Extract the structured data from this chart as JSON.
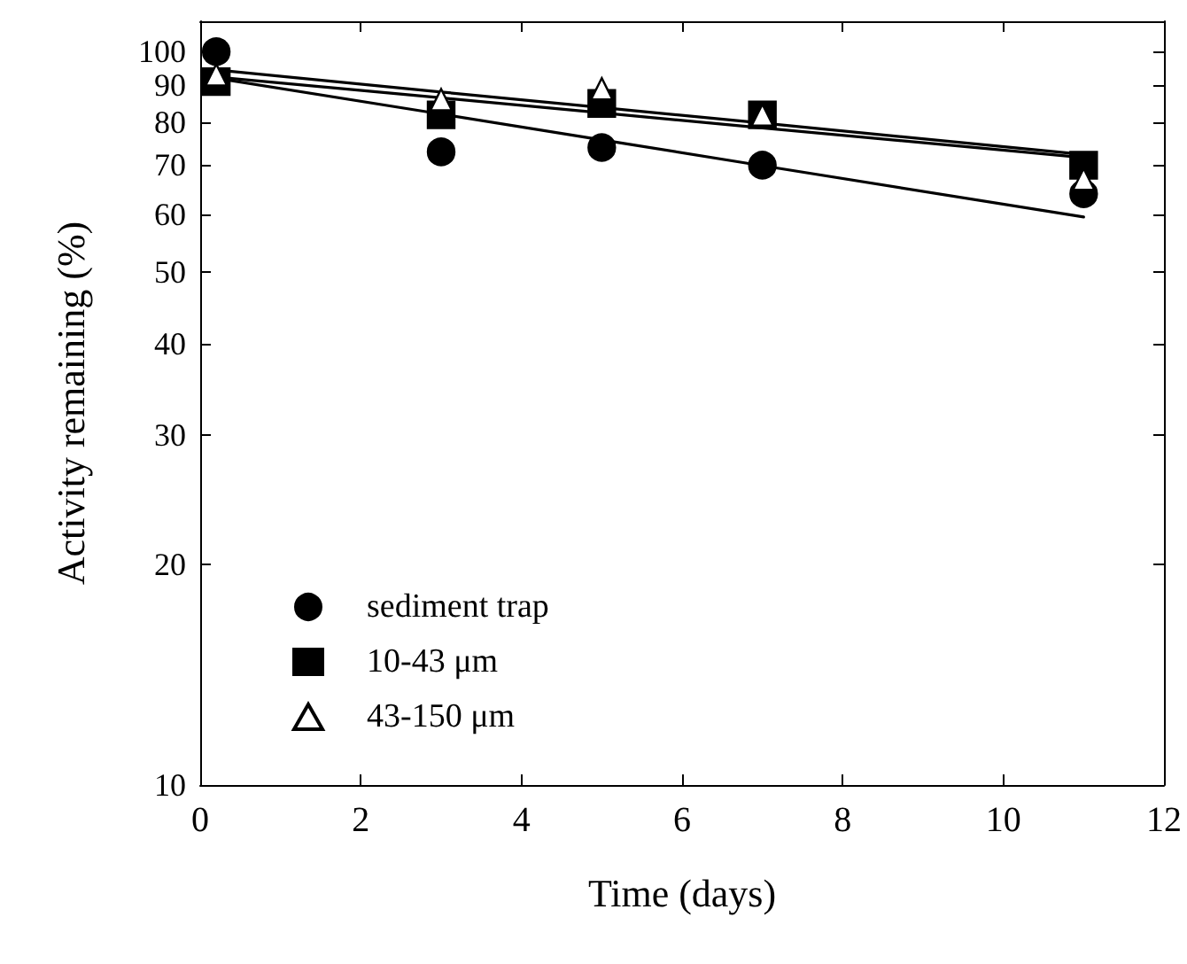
{
  "chart_data": {
    "type": "scatter",
    "xlabel": "Time (days)",
    "ylabel": "Activity remaining (%)",
    "xlim": [
      0,
      12
    ],
    "xticks": [
      0,
      2,
      4,
      6,
      8,
      10,
      12
    ],
    "ylim": [
      10,
      110
    ],
    "yticks": [
      10,
      20,
      30,
      40,
      50,
      60,
      70,
      80,
      90,
      100
    ],
    "log": "y",
    "grid": false,
    "legend": "bottom left",
    "x": [
      0.2,
      3,
      5,
      7,
      11
    ],
    "series": [
      {
        "name": "sediment trap",
        "color": "#000000",
        "marker": "circle",
        "values": [
          100,
          73,
          74,
          70,
          64
        ]
      },
      {
        "name": "10-43 μm",
        "color": "#000000",
        "marker": "square",
        "values": [
          91,
          82,
          85,
          82,
          70
        ]
      },
      {
        "name": "43-150 μm",
        "color": "#ffffff",
        "marker": "triangle",
        "values": [
          93,
          86,
          89,
          82,
          67
        ]
      },
      {
        "type": "line",
        "color": "#000000",
        "marker": "none",
        "values": [
          92,
          82.2,
          75.8,
          69.9,
          59.5
        ]
      },
      {
        "type": "line",
        "color": "#000000",
        "marker": "none",
        "values": [
          92.3,
          86.5,
          82.5,
          78.7,
          71.7
        ]
      },
      {
        "type": "line",
        "color": "#000000",
        "marker": "none",
        "values": [
          94.4,
          88.1,
          83.9,
          79.9,
          72.4
        ]
      }
    ]
  }
}
